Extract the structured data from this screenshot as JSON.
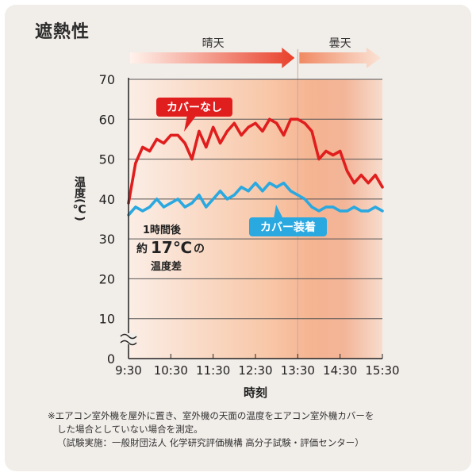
{
  "title": "遮熱性",
  "colors": {
    "no_cover": "#e01e1e",
    "with_cover": "#2aa8e0",
    "bg_card": "#f1ede9",
    "sunny_arrow": "#e8402a",
    "cloudy_arrow": "#f3b08c"
  },
  "bands": {
    "sunny": "晴天",
    "cloudy": "曇天"
  },
  "annotation": {
    "line1": "1時間後",
    "prefix": "約",
    "value": "17℃",
    "suffix": "の",
    "line3": "温度差"
  },
  "notes": [
    "※エアコン室外機を屋外に置き、室外機の天面の温度をエアコン室外機カバーを",
    "した場合としていない場合を測定。",
    "（試験実施：一般財団法人 化学研究評価機構 高分子試験・評価センター）"
  ],
  "chart_data": {
    "type": "line",
    "ylabel": "温度(℃)",
    "xlabel": "時刻",
    "xlim": [
      "9:30",
      "15:30"
    ],
    "ylim": [
      0,
      70
    ],
    "y_axis_break": true,
    "grid": true,
    "x_ticks": [
      "9:30",
      "10:30",
      "11:30",
      "12:30",
      "13:30",
      "14:30",
      "15:30"
    ],
    "y_ticks": [
      0,
      10,
      20,
      30,
      40,
      50,
      60,
      70
    ],
    "periods": [
      {
        "label": "晴天",
        "from": "9:30",
        "to": "13:30"
      },
      {
        "label": "曇天",
        "from": "13:30",
        "to": "15:30"
      }
    ],
    "series": [
      {
        "name": "カバーなし",
        "x": [
          "9:30",
          "9:40",
          "9:50",
          "10:00",
          "10:10",
          "10:20",
          "10:30",
          "10:40",
          "10:50",
          "11:00",
          "11:10",
          "11:20",
          "11:30",
          "11:40",
          "11:50",
          "12:00",
          "12:10",
          "12:20",
          "12:30",
          "12:40",
          "12:50",
          "13:00",
          "13:10",
          "13:20",
          "13:30",
          "13:40",
          "13:50",
          "14:00",
          "14:10",
          "14:20",
          "14:30",
          "14:40",
          "14:50",
          "15:00",
          "15:10",
          "15:20",
          "15:30"
        ],
        "values": [
          39,
          49,
          53,
          52,
          55,
          54,
          56,
          56,
          54,
          50,
          57,
          53,
          58,
          54,
          57,
          59,
          56,
          58,
          59,
          57,
          60,
          59,
          56,
          60,
          60,
          59,
          57,
          50,
          52,
          51,
          52,
          47,
          44,
          46,
          44,
          46,
          43
        ]
      },
      {
        "name": "カバー装着",
        "x": [
          "9:30",
          "9:40",
          "9:50",
          "10:00",
          "10:10",
          "10:20",
          "10:30",
          "10:40",
          "10:50",
          "11:00",
          "11:10",
          "11:20",
          "11:30",
          "11:40",
          "11:50",
          "12:00",
          "12:10",
          "12:20",
          "12:30",
          "12:40",
          "12:50",
          "13:00",
          "13:10",
          "13:20",
          "13:30",
          "13:40",
          "13:50",
          "14:00",
          "14:10",
          "14:20",
          "14:30",
          "14:40",
          "14:50",
          "15:00",
          "15:10",
          "15:20",
          "15:30"
        ],
        "values": [
          36,
          38,
          37,
          38,
          40,
          38,
          39,
          40,
          38,
          39,
          41,
          38,
          40,
          42,
          40,
          41,
          43,
          42,
          44,
          42,
          44,
          43,
          44,
          42,
          41,
          40,
          38,
          37,
          38,
          38,
          37,
          37,
          38,
          37,
          37,
          38,
          37
        ]
      }
    ]
  }
}
